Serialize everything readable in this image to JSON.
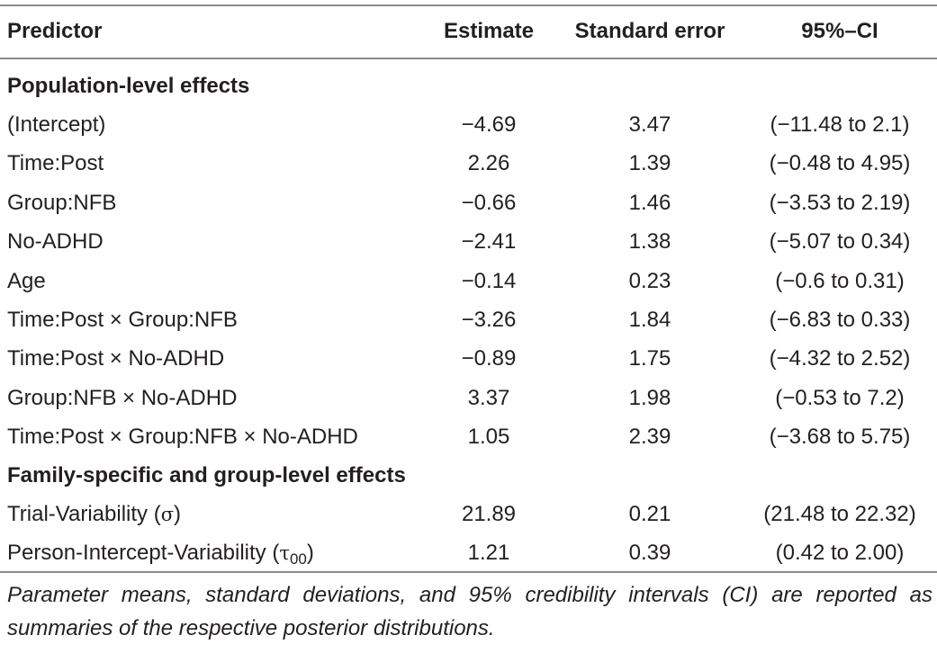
{
  "header": {
    "predictor": "Predictor",
    "estimate": "Estimate",
    "standard_error": "Standard error",
    "ci": "95%–CI"
  },
  "sections": {
    "population": "Population-level effects",
    "family": "Family-specific and group-level effects"
  },
  "population_rows": [
    {
      "predictor": "(Intercept)",
      "estimate": "−4.69",
      "se": "3.47",
      "ci": "(−11.48 to 2.1)"
    },
    {
      "predictor": "Time:Post",
      "estimate": "2.26",
      "se": "1.39",
      "ci": "(−0.48 to 4.95)"
    },
    {
      "predictor": "Group:NFB",
      "estimate": "−0.66",
      "se": "1.46",
      "ci": "(−3.53 to 2.19)"
    },
    {
      "predictor": "No-ADHD",
      "estimate": "−2.41",
      "se": "1.38",
      "ci": "(−5.07 to 0.34)"
    },
    {
      "predictor": "Age",
      "estimate": "−0.14",
      "se": "0.23",
      "ci": "(−0.6 to 0.31)"
    },
    {
      "predictor": "Time:Post × Group:NFB",
      "estimate": "−3.26",
      "se": "1.84",
      "ci": "(−6.83 to 0.33)"
    },
    {
      "predictor": "Time:Post × No-ADHD",
      "estimate": "−0.89",
      "se": "1.75",
      "ci": "(−4.32 to 2.52)"
    },
    {
      "predictor": "Group:NFB × No-ADHD",
      "estimate": "3.37",
      "se": "1.98",
      "ci": "(−0.53 to 7.2)"
    },
    {
      "predictor": "Time:Post × Group:NFB × No-ADHD",
      "estimate": "1.05",
      "se": "2.39",
      "ci": "(−3.68 to 5.75)"
    }
  ],
  "family_rows": [
    {
      "predictor": "Trial-Variability (",
      "symbol": "σ",
      "subscript": "",
      "suffix": ")",
      "estimate": "21.89",
      "se": "0.21",
      "ci": "(21.48 to 22.32)"
    },
    {
      "predictor": "Person-Intercept-Variability (",
      "symbol": "τ",
      "subscript": "00",
      "suffix": ")",
      "estimate": "1.21",
      "se": "0.39",
      "ci": "(0.42 to 2.00)"
    }
  ],
  "footnote": "Parameter means, standard deviations, and 95% credibility intervals (CI) are reported as summaries of the respective posterior distributions."
}
